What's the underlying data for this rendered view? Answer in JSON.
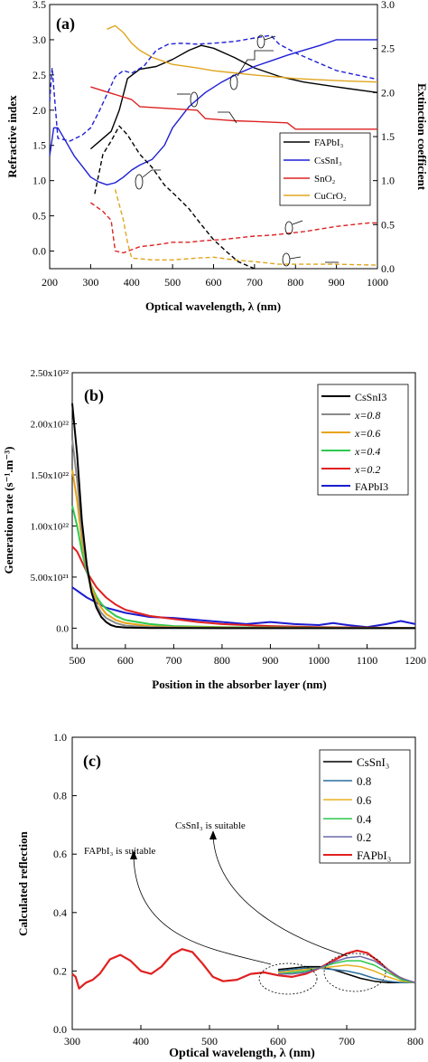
{
  "panels": [
    {
      "label": "(a)",
      "xlabel": "Optical wavelength, λ (nm)",
      "ylabel": "Refractive index",
      "y2label": "Extinction coefficient",
      "legend": [
        "FAPbI₃",
        "CsSnI₃",
        "SnO₂",
        "CuCrO₂"
      ],
      "xticks": [
        "200",
        "300",
        "400",
        "500",
        "600",
        "700",
        "800",
        "900",
        "1000"
      ],
      "yticks": [
        "0.0",
        "0.5",
        "1.0",
        "1.5",
        "2.0",
        "2.5",
        "3.0",
        "3.5"
      ],
      "y2ticks": [
        "0.0",
        "0.5",
        "1.0",
        "1.5",
        "2.0",
        "2.5",
        "3.0"
      ]
    },
    {
      "label": "(b)",
      "xlabel": "Position in the absorber layer (nm)",
      "ylabel": "Generation rate (s⁻¹.m⁻³)",
      "legend": [
        "CsSnI3",
        "x=0.8",
        "x=0.6",
        "x=0.4",
        "x=0.2",
        "FAPbI3"
      ],
      "xticks": [
        "500",
        "600",
        "700",
        "800",
        "900",
        "1000",
        "1100",
        "1200"
      ],
      "yticks": [
        "0.0",
        "5.00x10²¹",
        "1.00x10²²",
        "1.50x10²²",
        "2.00x10²²",
        "2.50x10²²"
      ]
    },
    {
      "label": "(c)",
      "xlabel": "Optical wavelength, λ (nm)",
      "ylabel": "Calculated reflection",
      "legend": [
        "CsSnI₃",
        "0.8",
        "0.6",
        "0.4",
        "0.2",
        "FAPbI₃"
      ],
      "annotations": [
        "CsSnI₃ is suitable",
        "FAPbI₃ is suitable"
      ],
      "xticks": [
        "300",
        "400",
        "500",
        "600",
        "700",
        "800"
      ],
      "yticks": [
        "0.0",
        "0.2",
        "0.4",
        "0.6",
        "0.8",
        "1.0"
      ]
    }
  ],
  "chart_data": [
    {
      "type": "line",
      "title": "(a)",
      "xlabel": "Optical wavelength, λ (nm)",
      "ylabel": "Refractive index",
      "y2label": "Extinction coefficient",
      "xlim": [
        200,
        1000
      ],
      "ylim": [
        -0.25,
        3.5
      ],
      "y2lim": [
        0,
        3.0
      ],
      "legend_position": "center-right",
      "series": [
        {
          "name": "FAPbI₃",
          "kind": "n",
          "axis": "left",
          "color": "#000000",
          "dash": false,
          "x": [
            300,
            320,
            350,
            370,
            390,
            420,
            460,
            500,
            540,
            570,
            600,
            650,
            700,
            760,
            820,
            900,
            1000
          ],
          "y": [
            1.45,
            1.55,
            1.7,
            2.0,
            2.45,
            2.58,
            2.62,
            2.72,
            2.85,
            2.92,
            2.88,
            2.75,
            2.6,
            2.48,
            2.4,
            2.33,
            2.25
          ]
        },
        {
          "name": "CsSnI₃",
          "kind": "n",
          "axis": "left",
          "color": "#1f1fd6",
          "dash": false,
          "x": [
            200,
            210,
            220,
            240,
            260,
            280,
            300,
            320,
            340,
            360,
            380,
            400,
            420,
            450,
            480,
            500,
            540,
            580,
            620,
            660,
            700,
            740,
            780,
            820,
            860,
            900,
            1000
          ],
          "y": [
            1.35,
            1.75,
            1.75,
            1.55,
            1.35,
            1.2,
            1.05,
            0.98,
            0.94,
            0.97,
            1.05,
            1.15,
            1.22,
            1.3,
            1.5,
            1.75,
            2.05,
            2.25,
            2.4,
            2.52,
            2.62,
            2.7,
            2.78,
            2.85,
            2.92,
            3.0,
            3.0
          ]
        },
        {
          "name": "SnO₂",
          "kind": "n",
          "axis": "left",
          "color": "#dd2222",
          "dash": false,
          "x": [
            300,
            400,
            420,
            500,
            560,
            580,
            650,
            700,
            780,
            800,
            1000
          ],
          "y": [
            2.33,
            2.15,
            2.05,
            2.02,
            2.0,
            1.88,
            1.85,
            1.84,
            1.82,
            1.73,
            1.73
          ]
        },
        {
          "name": "CuCrO₂",
          "kind": "n",
          "axis": "left",
          "color": "#e0a51e",
          "dash": false,
          "x": [
            340,
            360,
            380,
            400,
            420,
            450,
            500,
            560,
            600,
            700,
            800,
            900,
            1000
          ],
          "y": [
            3.15,
            3.2,
            3.1,
            2.95,
            2.85,
            2.75,
            2.65,
            2.6,
            2.56,
            2.5,
            2.45,
            2.42,
            2.4
          ]
        },
        {
          "name": "FAPbI₃",
          "kind": "k",
          "axis": "right",
          "color": "#000000",
          "dash": true,
          "x": [
            310,
            330,
            350,
            370,
            390,
            420,
            450,
            480,
            510,
            540,
            570,
            600,
            630,
            660,
            700
          ],
          "y": [
            0.85,
            1.3,
            1.45,
            1.62,
            1.52,
            1.3,
            1.15,
            0.95,
            0.82,
            0.68,
            0.5,
            0.33,
            0.2,
            0.08,
            0.0
          ]
        },
        {
          "name": "CsSnI₃",
          "kind": "k",
          "axis": "right",
          "color": "#1f1fd6",
          "dash": true,
          "x": [
            200,
            206,
            212,
            220,
            250,
            280,
            300,
            320,
            340,
            360,
            380,
            400,
            430,
            460,
            490,
            520,
            560,
            600,
            650,
            700,
            740,
            760,
            800,
            850,
            900,
            950,
            1000
          ],
          "y": [
            1.9,
            2.28,
            1.95,
            1.48,
            1.45,
            1.52,
            1.6,
            1.78,
            1.98,
            2.18,
            2.25,
            2.22,
            2.3,
            2.48,
            2.55,
            2.56,
            2.55,
            2.56,
            2.58,
            2.62,
            2.65,
            2.55,
            2.45,
            2.35,
            2.25,
            2.2,
            2.15
          ]
        },
        {
          "name": "SnO₂",
          "kind": "k",
          "axis": "right",
          "color": "#dd2222",
          "dash": true,
          "x": [
            300,
            330,
            350,
            360,
            380,
            420,
            460,
            500,
            540,
            580,
            620,
            660,
            700,
            740,
            780,
            820,
            860,
            900,
            940,
            980,
            1000
          ],
          "y": [
            0.75,
            0.65,
            0.55,
            0.2,
            0.18,
            0.25,
            0.27,
            0.3,
            0.3,
            0.32,
            0.33,
            0.35,
            0.37,
            0.38,
            0.4,
            0.42,
            0.45,
            0.48,
            0.5,
            0.52,
            0.52
          ]
        },
        {
          "name": "CuCrO₂",
          "kind": "k",
          "axis": "right",
          "color": "#e0a51e",
          "dash": true,
          "x": [
            360,
            380,
            390,
            400,
            450,
            500,
            560,
            600,
            650,
            700,
            760,
            820,
            900,
            1000
          ],
          "y": [
            0.9,
            0.55,
            0.3,
            0.12,
            0.1,
            0.1,
            0.12,
            0.13,
            0.1,
            0.08,
            0.05,
            0.05,
            0.05,
            0.04
          ]
        }
      ]
    },
    {
      "type": "line",
      "title": "(b)",
      "xlabel": "Position in the absorber layer (nm)",
      "ylabel": "Generation rate (s⁻¹.m⁻³)",
      "xlim": [
        490,
        1200
      ],
      "ylim": [
        -2e+21,
        2.5e+22
      ],
      "legend_position": "top-right",
      "series": [
        {
          "name": "CsSnI3",
          "color": "#000000",
          "x": [
            490,
            500,
            510,
            520,
            530,
            540,
            550,
            560,
            570,
            580,
            600,
            650,
            700,
            800,
            1200
          ],
          "y": [
            2.2e+22,
            1.7e+22,
            1.05e+22,
            6.2e+21,
            3.5e+21,
            2e+21,
            1.1e+21,
            6e+20,
            3e+20,
            1.5e+20,
            5e+19,
            2e+19,
            1e+19,
            0,
            0
          ]
        },
        {
          "name": "x=0.8",
          "color": "#8a8a8a",
          "x": [
            490,
            500,
            510,
            520,
            530,
            540,
            550,
            560,
            580,
            600,
            650,
            700,
            800,
            1200
          ],
          "y": [
            1.85e+22,
            1.45e+22,
            9.5e+21,
            5.8e+21,
            3.6e+21,
            2.3e+21,
            1.5e+21,
            1e+21,
            5e+20,
            2.5e+20,
            1e+20,
            5e+19,
            2e+19,
            0
          ]
        },
        {
          "name": "x=0.6",
          "color": "#e8a317",
          "x": [
            490,
            500,
            510,
            520,
            530,
            540,
            550,
            560,
            580,
            600,
            650,
            700,
            800,
            1200
          ],
          "y": [
            1.55e+22,
            1.25e+22,
            8.5e+21,
            5.8e+21,
            4e+21,
            2.8e+21,
            2e+21,
            1.4e+21,
            8e+20,
            5e+20,
            2e+20,
            1e+20,
            5e+19,
            0
          ]
        },
        {
          "name": "x=0.4",
          "color": "#2ec94e",
          "x": [
            490,
            500,
            510,
            520,
            530,
            540,
            550,
            560,
            580,
            600,
            650,
            700,
            800,
            1200
          ],
          "y": [
            1.2e+22,
            1e+22,
            7.5e+21,
            5.5e+21,
            4.1e+21,
            3.1e+21,
            2.4e+21,
            1.9e+21,
            1.2e+21,
            8e+20,
            4e+20,
            2e+20,
            1e+20,
            0
          ]
        },
        {
          "name": "x=0.2",
          "color": "#e02020",
          "x": [
            490,
            500,
            520,
            540,
            560,
            580,
            600,
            650,
            700,
            750,
            800,
            900,
            1000,
            1100,
            1200
          ],
          "y": [
            8e+21,
            7.5e+21,
            5.5e+21,
            4e+21,
            3e+21,
            2.3e+21,
            1.8e+21,
            1.2e+21,
            9e+20,
            6e+20,
            4e+20,
            2e+20,
            1e+20,
            5e+19,
            2e+19
          ]
        },
        {
          "name": "FAPbI3",
          "color": "#1c1cd0",
          "x": [
            490,
            520,
            560,
            600,
            650,
            700,
            750,
            800,
            850,
            900,
            950,
            1000,
            1030,
            1060,
            1100,
            1140,
            1170,
            1200
          ],
          "y": [
            4e+21,
            3e+21,
            2e+21,
            1.5e+21,
            1.1e+21,
            1e+21,
            8e+20,
            6e+20,
            4e+20,
            6e+20,
            4e+20,
            3e+20,
            5e+20,
            3e+20,
            1e+20,
            4e+20,
            7e+20,
            4e+20
          ]
        }
      ]
    },
    {
      "type": "line",
      "title": "(c)",
      "xlabel": "Optical wavelength, λ (nm)",
      "ylabel": "Calculated reflection",
      "xlim": [
        300,
        800
      ],
      "ylim": [
        0,
        1.0
      ],
      "legend_position": "top-right",
      "annotations": [
        "CsSnI₃ is suitable",
        "FAPbI₃ is suitable"
      ],
      "series": [
        {
          "name": "CsSnI₃",
          "color": "#000000",
          "x": [
            600,
            620,
            640,
            660,
            680,
            700,
            720,
            740,
            760,
            780,
            800
          ],
          "y": [
            0.205,
            0.21,
            0.215,
            0.215,
            0.205,
            0.19,
            0.175,
            0.165,
            0.16,
            0.16,
            0.16
          ]
        },
        {
          "name": "0.8",
          "color": "#2a6f9e",
          "x": [
            600,
            620,
            640,
            660,
            680,
            700,
            720,
            740,
            760,
            780,
            800
          ],
          "y": [
            0.2,
            0.205,
            0.21,
            0.21,
            0.205,
            0.2,
            0.19,
            0.175,
            0.165,
            0.16,
            0.16
          ]
        },
        {
          "name": "0.6",
          "color": "#e8b020",
          "x": [
            600,
            620,
            640,
            660,
            680,
            700,
            720,
            740,
            760,
            780,
            800
          ],
          "y": [
            0.195,
            0.2,
            0.205,
            0.21,
            0.215,
            0.22,
            0.215,
            0.2,
            0.18,
            0.165,
            0.16
          ]
        },
        {
          "name": "0.4",
          "color": "#2ec94e",
          "x": [
            600,
            620,
            640,
            660,
            680,
            700,
            720,
            740,
            760,
            780,
            800
          ],
          "y": [
            0.19,
            0.195,
            0.2,
            0.21,
            0.225,
            0.235,
            0.235,
            0.22,
            0.195,
            0.17,
            0.16
          ]
        },
        {
          "name": "0.2",
          "color": "#6a6aa8",
          "x": [
            600,
            620,
            640,
            660,
            680,
            700,
            720,
            740,
            760,
            780,
            800
          ],
          "y": [
            0.19,
            0.19,
            0.195,
            0.21,
            0.23,
            0.245,
            0.25,
            0.235,
            0.205,
            0.175,
            0.16
          ]
        },
        {
          "name": "FAPbI₃",
          "color": "#e02020",
          "x": [
            300,
            305,
            310,
            315,
            320,
            330,
            340,
            355,
            370,
            385,
            400,
            415,
            430,
            445,
            460,
            475,
            490,
            505,
            520,
            540,
            560,
            580,
            600,
            620,
            640,
            660,
            680,
            700,
            715,
            730,
            745,
            760,
            775,
            790,
            800
          ],
          "y": [
            0.19,
            0.18,
            0.14,
            0.15,
            0.16,
            0.17,
            0.19,
            0.24,
            0.255,
            0.235,
            0.2,
            0.19,
            0.215,
            0.255,
            0.275,
            0.265,
            0.225,
            0.18,
            0.165,
            0.17,
            0.19,
            0.195,
            0.185,
            0.18,
            0.19,
            0.21,
            0.235,
            0.26,
            0.27,
            0.262,
            0.235,
            0.205,
            0.18,
            0.165,
            0.16
          ]
        }
      ]
    }
  ]
}
